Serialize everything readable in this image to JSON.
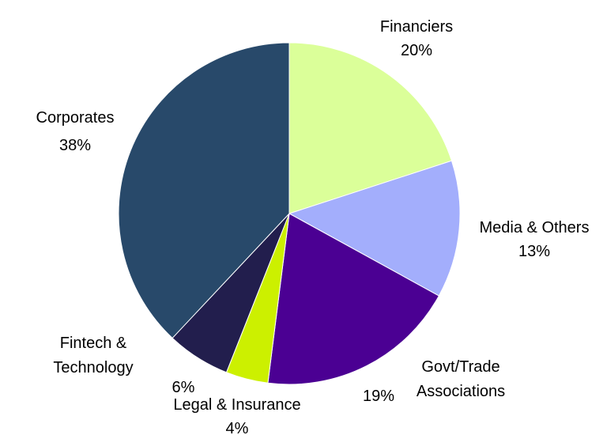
{
  "chart_data": {
    "type": "pie",
    "title": "",
    "start": "12 o'clock",
    "direction": "clockwise",
    "slices": [
      {
        "label": "Financiers",
        "value": 20,
        "value_label": "20%",
        "color": "#dbff99"
      },
      {
        "label": "Media & Others",
        "value": 13,
        "value_label": "13%",
        "color": "#a3aefc"
      },
      {
        "label": "Govt/Trade Associations",
        "value": 19,
        "value_label": "19%",
        "color": "#4b0093"
      },
      {
        "label": "Legal & Insurance",
        "value": 4,
        "value_label": "4%",
        "color": "#ccf000"
      },
      {
        "label": "Fintech & Technology",
        "value": 6,
        "value_label": "6%",
        "color": "#221e4d"
      },
      {
        "label": "Corporates",
        "value": 38,
        "value_label": "38%",
        "color": "#28496a"
      }
    ]
  }
}
